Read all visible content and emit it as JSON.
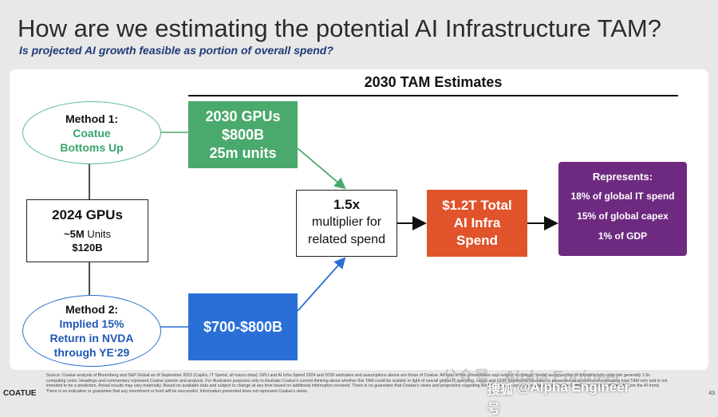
{
  "header": {
    "title": "How are we estimating the potential AI Infrastructure TAM?",
    "subtitle": "Is projected AI growth feasible as portion of overall spend?"
  },
  "tam_header": "2030 TAM Estimates",
  "method1": {
    "title": "Method 1:",
    "line1": "Coatue",
    "line2": "Bottoms Up"
  },
  "gpu2024": {
    "title": "2024 GPUs",
    "units_num": "~5M",
    "units_word": "Units",
    "price": "$120B"
  },
  "method2": {
    "title": "Method 2:",
    "line1": "Implied 15%",
    "line2": "Return in NVDA",
    "line3": "through YE‘29"
  },
  "gpu2030": {
    "line1": "2030 GPUs",
    "line2": "$800B",
    "line3": "25m units"
  },
  "method2_value": "$700-$800B",
  "multiplier": {
    "value": "1.5x",
    "line1": "multiplier for",
    "line2": "related spend"
  },
  "total": {
    "line1": "$1.2T Total",
    "line2": "AI Infra",
    "line3": "Spend"
  },
  "represents": {
    "title": "Represents:",
    "items": [
      "18% of global IT spend",
      "15% of global capex",
      "1% of GDP"
    ]
  },
  "footnote": "Source: Coatue analysis of Bloomberg and S&P Global as of September 2023 (CapEx, IT Spend, all macro data); GPU and AI Infra Spend 2024 and 2030 estimates and assumptions above are those of Coatue. All data of this presentation and subject to change; model assumes that AI infrastructure costs are generally 1.5x computing costs. Headings and commentary represent Coatue opinion and analysis. For illustrative purposes only to illustrate Coatue's current thinking about whether this TAM could be realistic in light of overall global IT spending, capex and GDP. Implied NVDA return is presented as a method of estimating total TAM only and is not intended to be a prediction. Actual results may vary materially. Based on available data and subject to change at any time based on additional information received. There is no guarantee that Coatue's views and projections regarding the future will be accurate or that any particular Coatue investment will benefit from the AI trend. There is no indication or guarantee that any investment or fund will be successful. Information presented does not represent Coatue's views.",
  "brand": "COATUE",
  "page_number": "43",
  "watermark": {
    "faint": "公众号 · Alpha Engineer",
    "logo": "搜狐号",
    "main": "@Alpha Engineer"
  },
  "colors": {
    "green": "#4aa96c",
    "blue": "#2a6fd6",
    "orange": "#e0532b",
    "purple": "#6e2a80",
    "subtitle": "#1e3a78"
  }
}
